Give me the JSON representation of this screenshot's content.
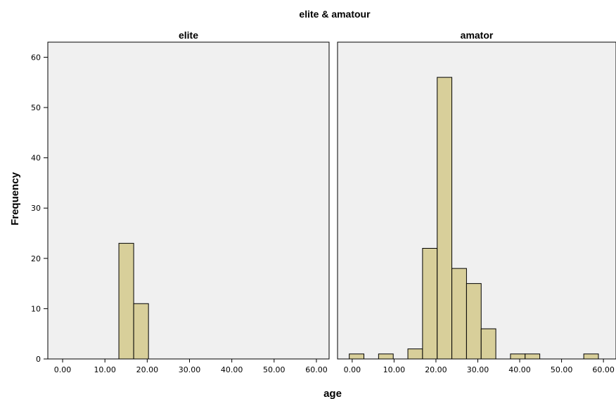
{
  "chart_data": {
    "type": "bar",
    "title": "elite & amatour",
    "xlabel": "age",
    "ylabel": "Frequency",
    "ylim": [
      0,
      63
    ],
    "y_ticks": [
      "0",
      "10",
      "20",
      "30",
      "40",
      "50",
      "60"
    ],
    "x_ticks": [
      "0.00",
      "10.00",
      "20.00",
      "30.00",
      "40.00",
      "50.00",
      "60.00"
    ],
    "xlim": [
      -3.5,
      63
    ],
    "bin_width": 3.5,
    "bar_color": "#d8cf9a",
    "plot_background": "#f0f0f0",
    "panels": [
      {
        "name": "elite",
        "bins": [
          {
            "x0": 13.3,
            "x1": 16.8,
            "count": 23
          },
          {
            "x0": 16.8,
            "x1": 20.3,
            "count": 11
          }
        ]
      },
      {
        "name": "amator",
        "bins": [
          {
            "x0": -0.7,
            "x1": 2.8,
            "count": 1
          },
          {
            "x0": 6.3,
            "x1": 9.8,
            "count": 1
          },
          {
            "x0": 13.3,
            "x1": 16.8,
            "count": 2
          },
          {
            "x0": 16.8,
            "x1": 20.3,
            "count": 22
          },
          {
            "x0": 20.3,
            "x1": 23.8,
            "count": 56
          },
          {
            "x0": 23.8,
            "x1": 27.3,
            "count": 18
          },
          {
            "x0": 27.3,
            "x1": 30.8,
            "count": 15
          },
          {
            "x0": 30.8,
            "x1": 34.3,
            "count": 6
          },
          {
            "x0": 37.8,
            "x1": 41.3,
            "count": 1
          },
          {
            "x0": 41.3,
            "x1": 44.8,
            "count": 1
          },
          {
            "x0": 55.3,
            "x1": 58.8,
            "count": 1
          }
        ]
      }
    ]
  }
}
